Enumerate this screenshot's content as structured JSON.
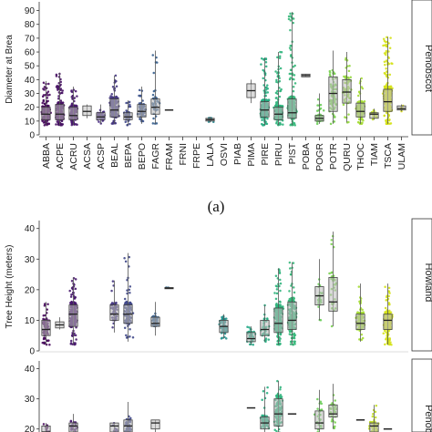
{
  "chart_data": [
    {
      "type": "box",
      "panel": "top",
      "ylabel": "Diameter at Brea",
      "facet_label": "Penobscot",
      "ylim": [
        0,
        95
      ],
      "yticks": [
        0,
        10,
        20,
        30,
        40,
        50,
        60,
        70,
        80,
        90
      ],
      "categories": [
        "ABBA",
        "ACPE",
        "ACRU",
        "ACSA",
        "ACSP",
        "BEAL",
        "BEPA",
        "BEPO",
        "FAGR",
        "FRAM",
        "FRNI",
        "FRPE",
        "LALA",
        "OSVI",
        "PIAB",
        "PIMA",
        "PIRE",
        "PIRU",
        "PIST",
        "POBA",
        "POGR",
        "POTR",
        "QURU",
        "THOC",
        "TIAM",
        "TSCA",
        "ULAM"
      ],
      "colors": [
        "#46085c",
        "#471264",
        "#48196e",
        "#48207a",
        "#472b7e",
        "#453781",
        "#3f4788",
        "#3b528b",
        "#355e8d",
        "#31688e",
        "#2c728e",
        "#287c8e",
        "#25858e",
        "#21918c",
        "#1e9b8a",
        "#22a785",
        "#27ad81",
        "#2fb47c",
        "#35b779",
        "#48c16e",
        "#6ccd5a",
        "#7ad151",
        "#95d840",
        "#a5db36",
        "#c2df23",
        "#d5e21a",
        "#e0e320"
      ],
      "series": [
        {
          "median": 15,
          "q1": 11,
          "q3": 20,
          "min": 7,
          "max": 39,
          "n": 220
        },
        {
          "median": 15,
          "q1": 11,
          "q3": 22,
          "min": 7,
          "max": 45,
          "n": 260
        },
        {
          "median": 14,
          "q1": 11,
          "q3": 20,
          "min": 7,
          "max": 35,
          "n": 180
        },
        {
          "median": 17,
          "q1": 14,
          "q3": 21,
          "min": 12,
          "max": 22,
          "n": 0
        },
        {
          "median": 13,
          "q1": 11,
          "q3": 16,
          "min": 8,
          "max": 22,
          "n": 40
        },
        {
          "median": 18,
          "q1": 13,
          "q3": 26,
          "min": 8,
          "max": 43,
          "n": 200
        },
        {
          "median": 13,
          "q1": 11,
          "q3": 16,
          "min": 7,
          "max": 25,
          "n": 60
        },
        {
          "median": 17,
          "q1": 13,
          "q3": 22,
          "min": 8,
          "max": 35,
          "n": 70
        },
        {
          "median": 20,
          "q1": 15,
          "q3": 26,
          "min": 8,
          "max": 61,
          "n": 40
        },
        {
          "median": 18,
          "q1": 18,
          "q3": 18,
          "min": 18,
          "max": 18,
          "n": 0
        },
        {
          "median": null
        },
        {
          "median": null
        },
        {
          "median": 11,
          "q1": 10,
          "q3": 12,
          "min": 9,
          "max": 13,
          "n": 12
        },
        {
          "median": null
        },
        {
          "median": null
        },
        {
          "median": 32,
          "q1": 27,
          "q3": 37,
          "min": 23,
          "max": 40,
          "n": 0
        },
        {
          "median": 18,
          "q1": 13,
          "q3": 24,
          "min": 7,
          "max": 56,
          "n": 300
        },
        {
          "median": 15,
          "q1": 11,
          "q3": 20,
          "min": 7,
          "max": 60,
          "n": 280
        },
        {
          "median": 16,
          "q1": 12,
          "q3": 26,
          "min": 7,
          "max": 89,
          "n": 240
        },
        {
          "median": 43,
          "q1": 42,
          "q3": 44,
          "min": 42,
          "max": 44,
          "n": 0
        },
        {
          "median": 12,
          "q1": 10,
          "q3": 14,
          "min": 8,
          "max": 30,
          "n": 60
        },
        {
          "median": 30,
          "q1": 17,
          "q3": 42,
          "min": 8,
          "max": 61,
          "n": 80
        },
        {
          "median": 31,
          "q1": 23,
          "q3": 40,
          "min": 9,
          "max": 60,
          "n": 70
        },
        {
          "median": 17,
          "q1": 13,
          "q3": 23,
          "min": 8,
          "max": 41,
          "n": 140
        },
        {
          "median": 15,
          "q1": 12,
          "q3": 16,
          "min": 11,
          "max": 19,
          "n": 20
        },
        {
          "median": 24,
          "q1": 17,
          "q3": 33,
          "min": 8,
          "max": 71,
          "n": 380
        },
        {
          "median": 19,
          "q1": 18,
          "q3": 21,
          "min": 17,
          "max": 22,
          "n": 10
        }
      ]
    },
    {
      "type": "box",
      "panel": "middle",
      "ylabel": "Tree Height (meters)",
      "facet_label": "Howland",
      "ylim": [
        0,
        42
      ],
      "yticks": [
        0,
        10,
        20,
        30,
        40
      ],
      "series": [
        {
          "median": 7,
          "q1": 5,
          "q3": 10,
          "min": 2,
          "max": 16,
          "n": 90
        },
        {
          "median": 8.5,
          "q1": 7.5,
          "q3": 9.5,
          "min": 7,
          "max": 11,
          "n": 0
        },
        {
          "median": 12,
          "q1": 8,
          "q3": 15,
          "min": 2,
          "max": 24,
          "n": 220
        },
        {
          "median": null
        },
        {
          "median": null
        },
        {
          "median": 12,
          "q1": 10,
          "q3": 15,
          "min": 6,
          "max": 23,
          "n": 60
        },
        {
          "median": 12,
          "q1": 9,
          "q3": 15,
          "min": 3,
          "max": 32,
          "n": 120
        },
        {
          "median": null
        },
        {
          "median": 9,
          "q1": 8,
          "q3": 11,
          "min": 5,
          "max": 16,
          "n": 40
        },
        {
          "median": 20.5,
          "q1": 20.3,
          "q3": 20.7,
          "min": 20.3,
          "max": 20.7,
          "n": 3
        },
        {
          "median": null
        },
        {
          "median": null
        },
        {
          "median": null
        },
        {
          "median": 8,
          "q1": 6,
          "q3": 10,
          "min": 4,
          "max": 12,
          "n": 80
        },
        {
          "median": null
        },
        {
          "median": 4,
          "q1": 3,
          "q3": 6,
          "min": 2,
          "max": 8,
          "n": 40
        },
        {
          "median": 7,
          "q1": 5,
          "q3": 10,
          "min": 3,
          "max": 15,
          "n": 40
        },
        {
          "median": 9,
          "q1": 6,
          "q3": 14,
          "min": 2,
          "max": 27,
          "n": 260
        },
        {
          "median": 10,
          "q1": 7,
          "q3": 16,
          "min": 2,
          "max": 29,
          "n": 220
        },
        {
          "median": null
        },
        {
          "median": 18,
          "q1": 15,
          "q3": 21,
          "min": 10,
          "max": 30,
          "n": 25
        },
        {
          "median": 16,
          "q1": 13,
          "q3": 24,
          "min": 8,
          "max": 39,
          "n": 35
        },
        {
          "median": null
        },
        {
          "median": 9,
          "q1": 7,
          "q3": 12,
          "min": 3,
          "max": 22,
          "n": 140
        },
        {
          "median": null
        },
        {
          "median": 10,
          "q1": 7,
          "q3": 12,
          "min": 2,
          "max": 22,
          "n": 300
        },
        {
          "median": null
        }
      ]
    },
    {
      "type": "box",
      "panel": "bottom",
      "facet_label": "Penob",
      "ylim": [
        19,
        42
      ],
      "yticks": [
        20,
        30,
        40
      ],
      "series": [
        {
          "median": 19,
          "q1": 18,
          "q3": 21,
          "min": 18,
          "max": 22,
          "n": 15
        },
        {
          "median": null
        },
        {
          "median": 21,
          "q1": 19,
          "q3": 22,
          "min": 18,
          "max": 25,
          "n": 25
        },
        {
          "median": null
        },
        {
          "median": null
        },
        {
          "median": 21,
          "q1": 19,
          "q3": 22,
          "min": 18,
          "max": 22,
          "n": 10
        },
        {
          "median": 21,
          "q1": 19,
          "q3": 23,
          "min": 18,
          "max": 29,
          "n": 40
        },
        {
          "median": null
        },
        {
          "median": 22,
          "q1": 20,
          "q3": 23,
          "min": 19,
          "max": 23,
          "n": 0
        },
        {
          "median": null
        },
        {
          "median": null
        },
        {
          "median": null
        },
        {
          "median": null
        },
        {
          "median": null
        },
        {
          "median": null
        },
        {
          "median": 27,
          "q1": 27,
          "q3": 27,
          "min": 27,
          "max": 27,
          "n": 0
        },
        {
          "median": 22,
          "q1": 20,
          "q3": 24,
          "min": 18,
          "max": 34,
          "n": 80
        },
        {
          "median": 25,
          "q1": 21,
          "q3": 30,
          "min": 18,
          "max": 36,
          "n": 120
        },
        {
          "median": 25,
          "q1": 25,
          "q3": 25,
          "min": 25,
          "max": 25,
          "n": 0
        },
        {
          "median": null
        },
        {
          "median": 22,
          "q1": 20,
          "q3": 26,
          "min": 18,
          "max": 33,
          "n": 30
        },
        {
          "median": 25,
          "q1": 24,
          "q3": 28,
          "min": 20,
          "max": 35,
          "n": 35
        },
        {
          "median": null
        },
        {
          "median": 23,
          "q1": 23,
          "q3": 23,
          "min": 23,
          "max": 23,
          "n": 0
        },
        {
          "median": 21,
          "q1": 19,
          "q3": 22,
          "min": 18,
          "max": 28,
          "n": 60
        },
        {
          "median": 20,
          "q1": 20,
          "q3": 20,
          "min": 20,
          "max": 20,
          "n": 0
        },
        {
          "median": null
        }
      ]
    }
  ],
  "panel_caption": "(a)"
}
